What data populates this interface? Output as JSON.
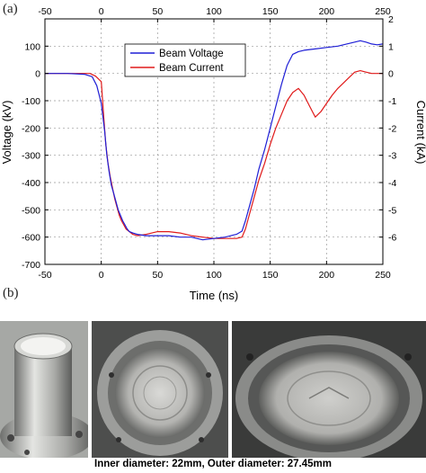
{
  "panel_a_label": "(a)",
  "panel_b_label": "(b)",
  "caption": "Inner diameter: 22mm, Outer diameter: 27.45mm",
  "chart_data": {
    "type": "line",
    "xlabel": "Time (ns)",
    "ylabel_left": "Voltage (kV)",
    "ylabel_right": "Current (kA)",
    "xlim": [
      -50,
      250
    ],
    "ylim_left": [
      -700,
      200
    ],
    "ylim_right": [
      -7,
      2
    ],
    "x_ticks": [
      -50,
      0,
      50,
      100,
      150,
      200,
      250
    ],
    "y_left_ticks": [
      -700,
      -600,
      -500,
      -400,
      -300,
      -200,
      -100,
      0,
      100
    ],
    "y_right_ticks": [
      -6,
      -5,
      -4,
      -3,
      -2,
      -1,
      0,
      1,
      2
    ],
    "grid": true,
    "legend_position": "upper-center",
    "series": [
      {
        "name": "Beam Voltage",
        "color": "#1f1fd6",
        "axis": "left",
        "x": [
          -50,
          -30,
          -15,
          -8,
          -4,
          0,
          3,
          5,
          7,
          9,
          11,
          13,
          15,
          17,
          19,
          21,
          23,
          25,
          28,
          32,
          40,
          50,
          60,
          70,
          80,
          90,
          100,
          110,
          115,
          120,
          125,
          128,
          132,
          136,
          140,
          145,
          150,
          155,
          160,
          165,
          170,
          175,
          180,
          190,
          200,
          210,
          215,
          220,
          225,
          230,
          235,
          240,
          245,
          250
        ],
        "y": [
          0,
          0,
          -3,
          -12,
          -45,
          -110,
          -210,
          -300,
          -360,
          -410,
          -440,
          -470,
          -500,
          -520,
          -540,
          -555,
          -570,
          -580,
          -585,
          -590,
          -595,
          -595,
          -595,
          -600,
          -600,
          -610,
          -605,
          -600,
          -595,
          -590,
          -578,
          -540,
          -480,
          -420,
          -350,
          -280,
          -200,
          -120,
          -40,
          30,
          70,
          80,
          85,
          90,
          95,
          100,
          105,
          110,
          115,
          120,
          115,
          108,
          105,
          108
        ]
      },
      {
        "name": "Beam Current",
        "color": "#e01a1a",
        "axis": "right",
        "x": [
          -50,
          -30,
          -10,
          -5,
          0,
          2,
          4,
          6,
          8,
          10,
          12,
          14,
          16,
          18,
          20,
          22,
          25,
          28,
          32,
          40,
          50,
          60,
          70,
          80,
          90,
          100,
          110,
          120,
          125,
          128,
          132,
          136,
          140,
          145,
          150,
          155,
          160,
          165,
          170,
          175,
          180,
          185,
          190,
          195,
          200,
          205,
          210,
          215,
          220,
          225,
          230,
          235,
          240,
          250
        ],
        "y": [
          0,
          0,
          0,
          -0.1,
          -0.3,
          -1.5,
          -2.6,
          -3.3,
          -3.8,
          -4.2,
          -4.6,
          -4.9,
          -5.2,
          -5.4,
          -5.55,
          -5.7,
          -5.8,
          -5.9,
          -5.95,
          -5.9,
          -5.8,
          -5.8,
          -5.85,
          -5.95,
          -6.0,
          -6.05,
          -6.05,
          -6.05,
          -6.0,
          -5.7,
          -5.1,
          -4.5,
          -3.9,
          -3.3,
          -2.6,
          -2.0,
          -1.5,
          -1.0,
          -0.7,
          -0.55,
          -0.8,
          -1.2,
          -1.6,
          -1.4,
          -1.1,
          -0.8,
          -0.55,
          -0.35,
          -0.15,
          0.05,
          0.1,
          0.05,
          0.0,
          0.0
        ]
      }
    ]
  }
}
